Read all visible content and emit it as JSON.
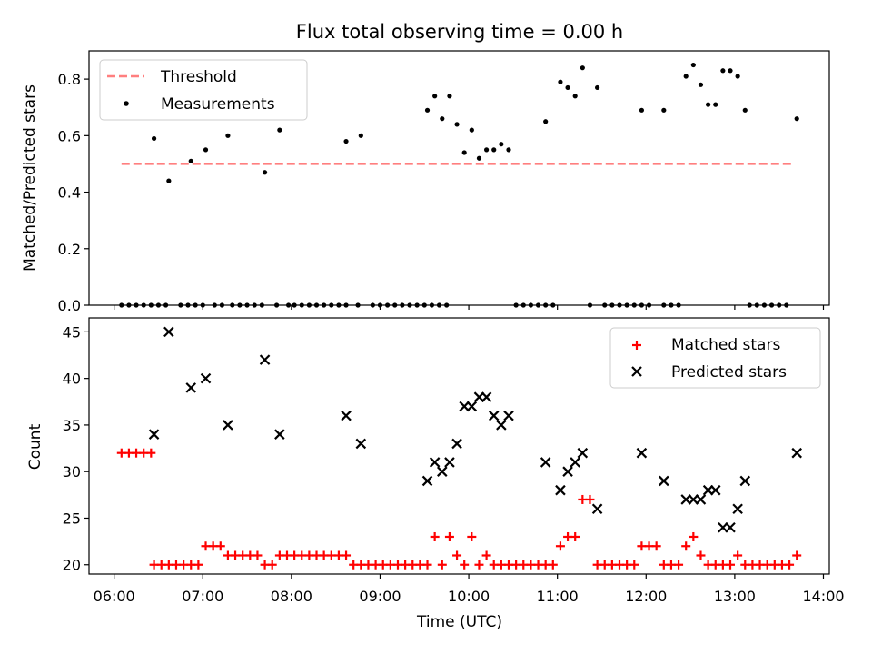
{
  "chart_data": [
    {
      "type": "scatter",
      "title": "Flux total observing time = 0.00 h",
      "xlabel": "",
      "ylabel": "Matched/Predicted stars",
      "xlim": [
        "06:00",
        "14:00"
      ],
      "xlim_margin_minutes": [
        -17,
        4
      ],
      "ylim": [
        0,
        0.9
      ],
      "yticks": [
        0.0,
        0.2,
        0.4,
        0.6,
        0.8
      ],
      "yticklabels": [
        "0.0",
        "0.2",
        "0.4",
        "0.6",
        "0.8"
      ],
      "legend": {
        "position": "top-left",
        "entries": [
          "Threshold",
          "Measurements"
        ]
      },
      "threshold": {
        "name": "Threshold",
        "value": 0.5,
        "x_range": [
          "06:05",
          "13:40"
        ],
        "color": "#ff7f7f",
        "style": "dashed"
      },
      "series": [
        {
          "name": "Measurements",
          "color": "#000000",
          "marker": "dot",
          "points": [
            [
              "06:05",
              0
            ],
            [
              "06:10",
              0
            ],
            [
              "06:15",
              0
            ],
            [
              "06:20",
              0
            ],
            [
              "06:25",
              0
            ],
            [
              "06:30",
              0
            ],
            [
              "06:27",
              0.59
            ],
            [
              "06:35",
              0
            ],
            [
              "06:37",
              0.44
            ],
            [
              "06:45",
              0
            ],
            [
              "06:50",
              0
            ],
            [
              "06:55",
              0
            ],
            [
              "06:52",
              0.51
            ],
            [
              "07:00",
              0
            ],
            [
              "07:02",
              0.55
            ],
            [
              "07:08",
              0
            ],
            [
              "07:13",
              0
            ],
            [
              "07:20",
              0
            ],
            [
              "07:17",
              0.6
            ],
            [
              "07:25",
              0
            ],
            [
              "07:30",
              0
            ],
            [
              "07:35",
              0
            ],
            [
              "07:40",
              0
            ],
            [
              "07:42",
              0.47
            ],
            [
              "07:50",
              0
            ],
            [
              "07:52",
              0.62
            ],
            [
              "07:58",
              0
            ],
            [
              "08:02",
              0
            ],
            [
              "08:07",
              0
            ],
            [
              "08:12",
              0
            ],
            [
              "08:17",
              0
            ],
            [
              "08:22",
              0
            ],
            [
              "08:27",
              0
            ],
            [
              "08:32",
              0
            ],
            [
              "08:37",
              0
            ],
            [
              "08:37",
              0.58
            ],
            [
              "08:45",
              0
            ],
            [
              "08:47",
              0.6
            ],
            [
              "08:55",
              0
            ],
            [
              "09:00",
              0
            ],
            [
              "09:05",
              0
            ],
            [
              "09:10",
              0
            ],
            [
              "09:15",
              0
            ],
            [
              "09:20",
              0
            ],
            [
              "09:25",
              0
            ],
            [
              "09:30",
              0
            ],
            [
              "09:35",
              0
            ],
            [
              "09:40",
              0
            ],
            [
              "09:45",
              0
            ],
            [
              "09:32",
              0.69
            ],
            [
              "09:37",
              0.74
            ],
            [
              "09:42",
              0.66
            ],
            [
              "09:47",
              0.74
            ],
            [
              "09:52",
              0.64
            ],
            [
              "09:57",
              0.54
            ],
            [
              "10:02",
              0.62
            ],
            [
              "10:07",
              0.52
            ],
            [
              "10:12",
              0.55
            ],
            [
              "10:17",
              0.55
            ],
            [
              "10:22",
              0.57
            ],
            [
              "10:27",
              0.55
            ],
            [
              "10:32",
              0
            ],
            [
              "10:37",
              0
            ],
            [
              "10:42",
              0
            ],
            [
              "10:47",
              0
            ],
            [
              "10:52",
              0.65
            ],
            [
              "10:52",
              0
            ],
            [
              "10:57",
              0
            ],
            [
              "11:02",
              0.79
            ],
            [
              "11:07",
              0.77
            ],
            [
              "11:12",
              0.74
            ],
            [
              "11:17",
              0.84
            ],
            [
              "11:22",
              0
            ],
            [
              "11:27",
              0.77
            ],
            [
              "11:32",
              0
            ],
            [
              "11:37",
              0
            ],
            [
              "11:42",
              0
            ],
            [
              "11:47",
              0
            ],
            [
              "11:52",
              0
            ],
            [
              "11:57",
              0.69
            ],
            [
              "11:57",
              0
            ],
            [
              "12:02",
              0
            ],
            [
              "12:12",
              0.69
            ],
            [
              "12:12",
              0
            ],
            [
              "12:17",
              0
            ],
            [
              "12:22",
              0
            ],
            [
              "12:27",
              0.81
            ],
            [
              "12:32",
              0.85
            ],
            [
              "12:37",
              0.78
            ],
            [
              "12:42",
              0.71
            ],
            [
              "12:47",
              0.71
            ],
            [
              "12:52",
              0.83
            ],
            [
              "12:57",
              0.83
            ],
            [
              "13:02",
              0.81
            ],
            [
              "13:07",
              0.69
            ],
            [
              "13:10",
              0
            ],
            [
              "13:15",
              0
            ],
            [
              "13:20",
              0
            ],
            [
              "13:25",
              0
            ],
            [
              "13:30",
              0
            ],
            [
              "13:35",
              0
            ],
            [
              "13:42",
              0.66
            ]
          ]
        }
      ]
    },
    {
      "type": "scatter",
      "title": "",
      "xlabel": "Time (UTC)",
      "ylabel": "Count",
      "xlim": [
        "06:00",
        "14:00"
      ],
      "xlim_margin_minutes": [
        -17,
        4
      ],
      "ylim": [
        19,
        46.5
      ],
      "xticks": [
        "06:00",
        "07:00",
        "08:00",
        "09:00",
        "10:00",
        "11:00",
        "12:00",
        "13:00",
        "14:00"
      ],
      "yticks": [
        20,
        25,
        30,
        35,
        40,
        45
      ],
      "yticklabels": [
        "20",
        "25",
        "30",
        "35",
        "40",
        "45"
      ],
      "legend": {
        "position": "top-right",
        "entries": [
          "Matched stars",
          "Predicted stars"
        ]
      },
      "series": [
        {
          "name": "Matched stars",
          "color": "#ff0000",
          "marker": "plus",
          "points": [
            [
              "06:05",
              32
            ],
            [
              "06:10",
              32
            ],
            [
              "06:15",
              32
            ],
            [
              "06:20",
              32
            ],
            [
              "06:25",
              32
            ],
            [
              "06:27",
              20
            ],
            [
              "06:32",
              20
            ],
            [
              "06:37",
              20
            ],
            [
              "06:42",
              20
            ],
            [
              "06:47",
              20
            ],
            [
              "06:52",
              20
            ],
            [
              "06:57",
              20
            ],
            [
              "07:02",
              22
            ],
            [
              "07:07",
              22
            ],
            [
              "07:12",
              22
            ],
            [
              "07:17",
              21
            ],
            [
              "07:22",
              21
            ],
            [
              "07:27",
              21
            ],
            [
              "07:32",
              21
            ],
            [
              "07:37",
              21
            ],
            [
              "07:42",
              20
            ],
            [
              "07:47",
              20
            ],
            [
              "07:52",
              21
            ],
            [
              "07:57",
              21
            ],
            [
              "08:02",
              21
            ],
            [
              "08:07",
              21
            ],
            [
              "08:12",
              21
            ],
            [
              "08:17",
              21
            ],
            [
              "08:22",
              21
            ],
            [
              "08:27",
              21
            ],
            [
              "08:32",
              21
            ],
            [
              "08:37",
              21
            ],
            [
              "08:42",
              20
            ],
            [
              "08:47",
              20
            ],
            [
              "08:52",
              20
            ],
            [
              "08:57",
              20
            ],
            [
              "09:02",
              20
            ],
            [
              "09:07",
              20
            ],
            [
              "09:12",
              20
            ],
            [
              "09:17",
              20
            ],
            [
              "09:22",
              20
            ],
            [
              "09:27",
              20
            ],
            [
              "09:32",
              20
            ],
            [
              "09:37",
              23
            ],
            [
              "09:42",
              20
            ],
            [
              "09:47",
              23
            ],
            [
              "09:52",
              21
            ],
            [
              "09:57",
              20
            ],
            [
              "10:02",
              23
            ],
            [
              "10:07",
              20
            ],
            [
              "10:12",
              21
            ],
            [
              "10:17",
              20
            ],
            [
              "10:22",
              20
            ],
            [
              "10:27",
              20
            ],
            [
              "10:32",
              20
            ],
            [
              "10:37",
              20
            ],
            [
              "10:42",
              20
            ],
            [
              "10:47",
              20
            ],
            [
              "10:52",
              20
            ],
            [
              "10:57",
              20
            ],
            [
              "11:02",
              22
            ],
            [
              "11:07",
              23
            ],
            [
              "11:12",
              23
            ],
            [
              "11:17",
              27
            ],
            [
              "11:22",
              27
            ],
            [
              "11:27",
              20
            ],
            [
              "11:32",
              20
            ],
            [
              "11:37",
              20
            ],
            [
              "11:42",
              20
            ],
            [
              "11:47",
              20
            ],
            [
              "11:52",
              20
            ],
            [
              "11:57",
              22
            ],
            [
              "12:02",
              22
            ],
            [
              "12:07",
              22
            ],
            [
              "12:12",
              20
            ],
            [
              "12:17",
              20
            ],
            [
              "12:22",
              20
            ],
            [
              "12:27",
              22
            ],
            [
              "12:32",
              23
            ],
            [
              "12:37",
              21
            ],
            [
              "12:42",
              20
            ],
            [
              "12:47",
              20
            ],
            [
              "12:52",
              20
            ],
            [
              "12:57",
              20
            ],
            [
              "13:02",
              21
            ],
            [
              "13:07",
              20
            ],
            [
              "13:12",
              20
            ],
            [
              "13:17",
              20
            ],
            [
              "13:22",
              20
            ],
            [
              "13:27",
              20
            ],
            [
              "13:32",
              20
            ],
            [
              "13:37",
              20
            ],
            [
              "13:42",
              21
            ]
          ]
        },
        {
          "name": "Predicted stars",
          "color": "#000000",
          "marker": "x",
          "points": [
            [
              "06:27",
              34
            ],
            [
              "06:37",
              45
            ],
            [
              "06:52",
              39
            ],
            [
              "07:02",
              40
            ],
            [
              "07:17",
              35
            ],
            [
              "07:42",
              42
            ],
            [
              "07:52",
              34
            ],
            [
              "08:37",
              36
            ],
            [
              "08:47",
              33
            ],
            [
              "09:32",
              29
            ],
            [
              "09:37",
              31
            ],
            [
              "09:42",
              30
            ],
            [
              "09:47",
              31
            ],
            [
              "09:52",
              33
            ],
            [
              "09:57",
              37
            ],
            [
              "10:02",
              37
            ],
            [
              "10:07",
              38
            ],
            [
              "10:12",
              38
            ],
            [
              "10:17",
              36
            ],
            [
              "10:22",
              35
            ],
            [
              "10:27",
              36
            ],
            [
              "10:52",
              31
            ],
            [
              "11:02",
              28
            ],
            [
              "11:07",
              30
            ],
            [
              "11:12",
              31
            ],
            [
              "11:17",
              32
            ],
            [
              "11:27",
              26
            ],
            [
              "11:57",
              32
            ],
            [
              "12:12",
              29
            ],
            [
              "12:27",
              27
            ],
            [
              "12:32",
              27
            ],
            [
              "12:37",
              27
            ],
            [
              "12:42",
              28
            ],
            [
              "12:47",
              28
            ],
            [
              "12:52",
              24
            ],
            [
              "12:57",
              24
            ],
            [
              "13:02",
              26
            ],
            [
              "13:07",
              29
            ],
            [
              "13:42",
              32
            ]
          ]
        }
      ]
    }
  ]
}
